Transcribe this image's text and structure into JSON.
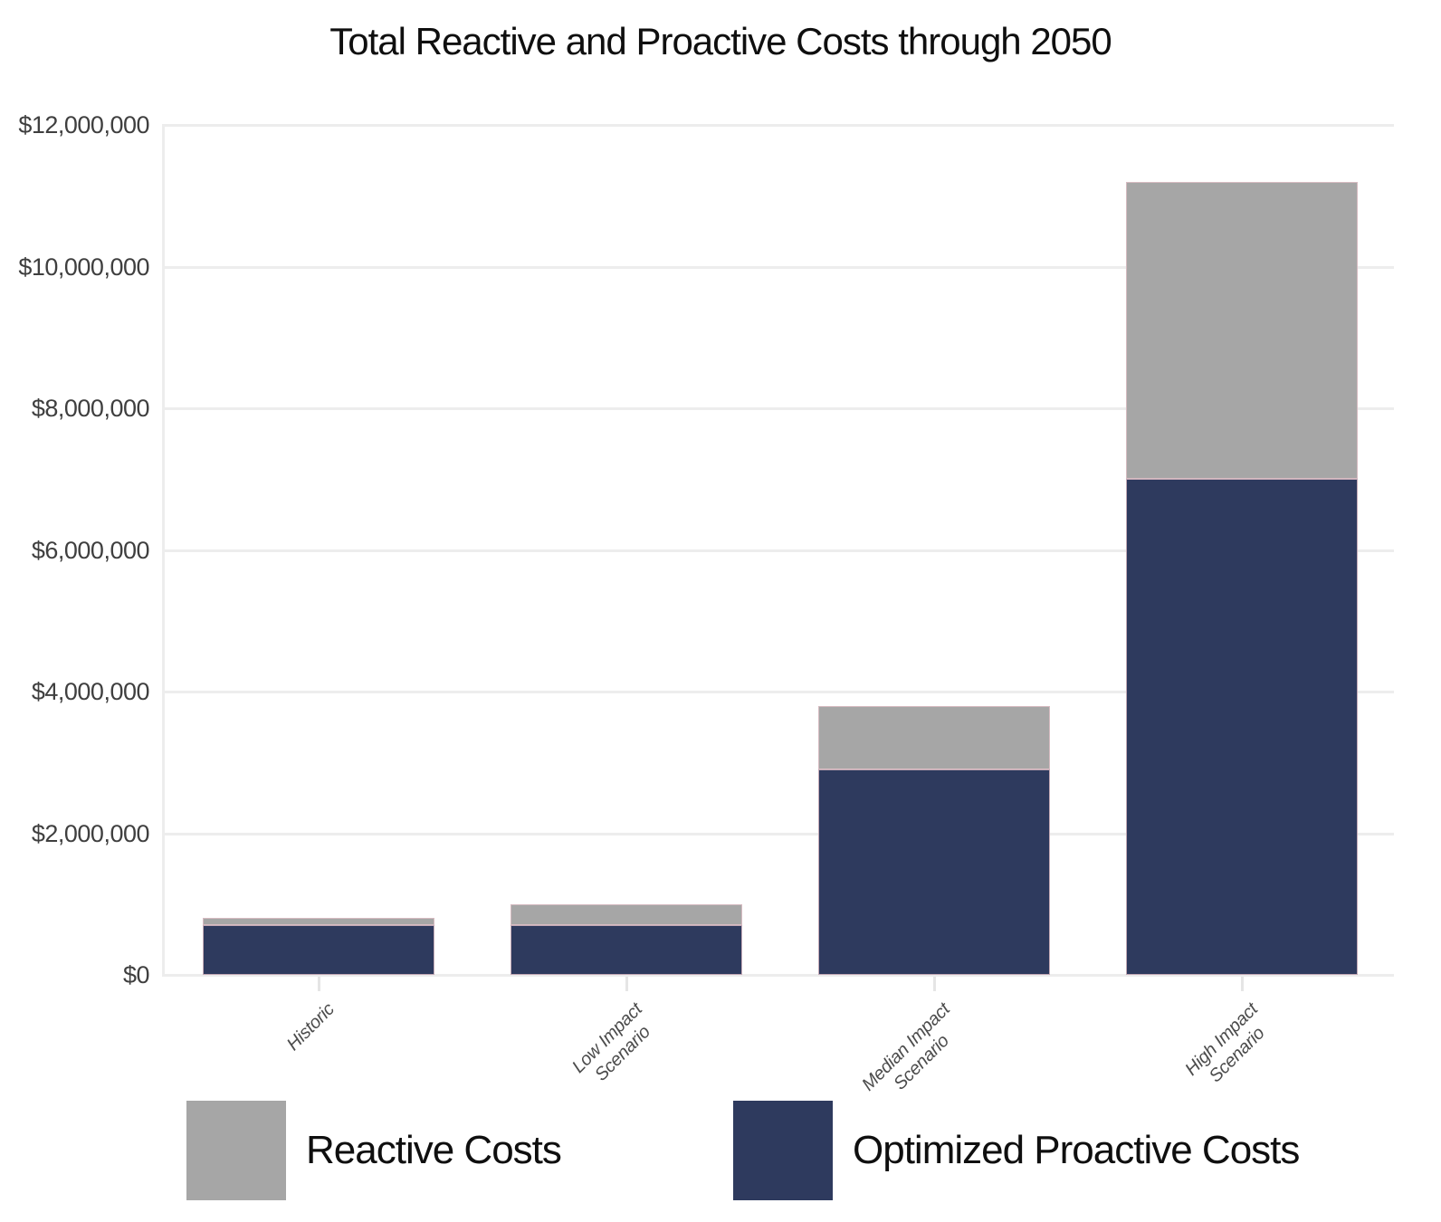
{
  "title": "Total Reactive and Proactive Costs through 2050",
  "colors": {
    "reactive": "#a6a6a6",
    "proactive": "#2e3a5e",
    "gridline": "#ededed",
    "bar_border": "#debec5",
    "title_text": "#0f0f0f",
    "y_label_text": "#3f3f3f",
    "x_label_text": "#4c4c4c",
    "background": "#ffffff"
  },
  "legend": {
    "position": "bottom",
    "items": [
      {
        "label": "Reactive Costs",
        "series": "reactive",
        "color": "#a6a6a6"
      },
      {
        "label": "Optimized Proactive Costs",
        "series": "proactive",
        "color": "#2e3a5e"
      }
    ]
  },
  "chart_data": {
    "type": "bar",
    "stacked": true,
    "title": "Total Reactive and Proactive Costs through 2050",
    "xlabel": "",
    "ylabel": "",
    "categories": [
      "Historic",
      "Low Impact Scenario",
      "Median Impact Scenario",
      "High Impact Scenario"
    ],
    "x_tick_display_lines": [
      [
        "Historic"
      ],
      [
        "Low Impact",
        "Scenario"
      ],
      [
        "Median Impact",
        "Scenario"
      ],
      [
        "High Impact",
        "Scenario"
      ]
    ],
    "series": [
      {
        "name": "Optimized Proactive Costs",
        "color": "#2e3a5e",
        "values": [
          700000,
          700000,
          2900000,
          7000000
        ]
      },
      {
        "name": "Reactive Costs",
        "color": "#a6a6a6",
        "values": [
          100000,
          300000,
          900000,
          4200000
        ]
      }
    ],
    "totals": [
      800000,
      1000000,
      3800000,
      11200000
    ],
    "ylim": [
      0,
      12000000
    ],
    "ytick_step": 2000000,
    "ytick_values": [
      0,
      2000000,
      4000000,
      6000000,
      8000000,
      10000000,
      12000000
    ],
    "ytick_labels": [
      "$0",
      "$2,000,000",
      "$4,000,000",
      "$6,000,000",
      "$8,000,000",
      "$10,000,000",
      "$12,000,000"
    ],
    "grid": "horizontal",
    "legend_position": "bottom"
  }
}
